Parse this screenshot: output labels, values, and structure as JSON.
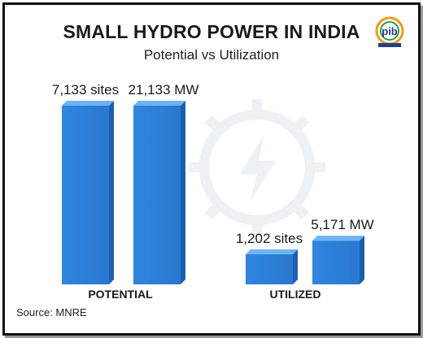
{
  "header": {
    "title": "SMALL HYDRO POWER IN INDIA",
    "subtitle": "Potential vs Utilization",
    "logo_text": "pib"
  },
  "footer": {
    "source": "Source: MNRE"
  },
  "colors": {
    "bar_front": "#2f86e0",
    "bar_side": "#1b5fb3",
    "bar_top": "#6fb3f4",
    "text": "#1a1a1a"
  },
  "chart_data": {
    "type": "bar",
    "title": "SMALL HYDRO POWER IN INDIA",
    "subtitle": "Potential vs Utilization",
    "categories": [
      "POTENTIAL",
      "UTILIZED"
    ],
    "series": [
      {
        "name": "sites",
        "values": [
          7133,
          1202
        ],
        "labels": [
          "7,133 sites",
          "1,202 sites"
        ]
      },
      {
        "name": "MW",
        "values": [
          21133,
          5171
        ],
        "labels": [
          "21,133 MW",
          "5,171 MW"
        ]
      }
    ],
    "grid": false,
    "legend": "none"
  }
}
